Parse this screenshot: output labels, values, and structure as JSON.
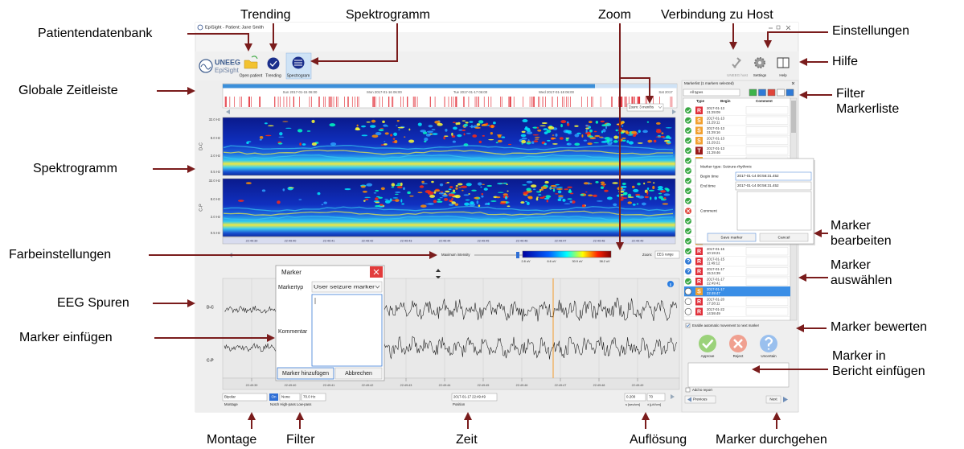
{
  "annotations": [
    "Patientendatenbank",
    "Trending",
    "Spektrogramm",
    "Zoom",
    "Verbindung zu Host",
    "Einstellungen",
    "Hilfe",
    "Globale Zeitleiste",
    "Filter Markerliste",
    "Spektrogramm",
    "Farbeinstellungen",
    "Marker bearbeiten",
    "Marker auswählen",
    "EEG Spuren",
    "Marker einfügen",
    "Marker bewerten",
    "Marker in Bericht einfügen",
    "Montage",
    "Filter",
    "Zeit",
    "Auflösung",
    "Marker durchgehen"
  ],
  "window": {
    "title": "EpiSight - Patient: Jane Smith"
  },
  "toolbar": {
    "brand": "UNEEG",
    "product": "EpiSight",
    "buttons": [
      "Open patient",
      "Trending",
      "Spectrogram"
    ],
    "right_buttons": [
      "UNEEG host",
      "Settings",
      "Help"
    ]
  },
  "timeline": {
    "dates": [
      "Sun 2017-01-15 06:00",
      "Mon 2017-01-16 06:00",
      "Tue 2017-01-17 06:00",
      "Wed 2017-01-18 06:00",
      "Sat 2017"
    ],
    "zoom": "Zoom: 3 months"
  },
  "spectrogram": {
    "channels": [
      "D-C",
      "C-P"
    ],
    "freq_ticks": [
      "32.0 Hz",
      "8.0 Hz",
      "2.0 Hz",
      "0.5 Hz"
    ],
    "time_ticks": [
      "22:49:39",
      "22:49:40",
      "22:49:41",
      "22:49:42",
      "22:49:43",
      "22:49:44",
      "22:49:45",
      "22:49:46",
      "22:49:47",
      "22:49:48",
      "22:49:49"
    ],
    "intensity_label": "Maximum intensity",
    "scale_labels": [
      "2.8 uV",
      "6.6 uV",
      "30.9 uV",
      "38.2 uV"
    ],
    "zoom_label": "Zoom:",
    "zoom_value": "EEG range"
  },
  "eeg": {
    "channels": [
      "D-C",
      "C-P"
    ],
    "time_ticks": [
      "22:49:39",
      "22:49:40",
      "22:49:41",
      "22:49:42",
      "22:49:43",
      "22:49:44",
      "22:49:45",
      "22:49:46",
      "22:49:47",
      "22:49:48",
      "22:49:49"
    ]
  },
  "insert_dialog": {
    "title": "Marker",
    "type_label": "Markertyp",
    "type_value": "User seizure marker",
    "comment_label": "Kommentar",
    "add": "Marker hinzufügen",
    "cancel": "Abbrechen"
  },
  "controls": {
    "montage": "Bipolar",
    "montage_label": "Montage",
    "filter_on": "On",
    "notch": "None",
    "lowpass": "70.0 Hz",
    "filter_label": "Notch High-pass Low-pass",
    "position": "2017-01-17 22:49:49",
    "position_label": "Position",
    "time_scale": "0.200",
    "amplitude_scale": "70",
    "time_scale_label": "s [sec/cm]",
    "amplitude_scale_label": "± [µV/cm]"
  },
  "marker_list": {
    "title": "Markerlist (1 markers selected)",
    "filter": "All types",
    "columns": [
      "Type",
      "Begin",
      "Comment"
    ],
    "rows": [
      {
        "status": "approved",
        "type": "R",
        "date": "2017-01-13",
        "time": "21:29:09"
      },
      {
        "status": "approved",
        "type": "S",
        "date": "2017-01-13",
        "time": "21:29:11"
      },
      {
        "status": "approved",
        "type": "S",
        "date": "2017-01-13",
        "time": "21:29:16"
      },
      {
        "status": "approved",
        "type": "S",
        "date": "2017-01-13",
        "time": "21:29:21"
      },
      {
        "status": "approved",
        "type": "T",
        "date": "2017-01-13",
        "time": "21:29:46"
      },
      {
        "status": "approved",
        "type": "S",
        "date": null,
        "time": null
      },
      {
        "status": "approved",
        "type": "S",
        "date": null,
        "time": null
      },
      {
        "status": "approved",
        "type": "S",
        "date": null,
        "time": null
      },
      {
        "status": "approved",
        "type": "T",
        "date": null,
        "time": null
      },
      {
        "status": "approved",
        "type": "S",
        "date": null,
        "time": null
      },
      {
        "status": "rejected",
        "type": "R",
        "date": null,
        "time": null
      },
      {
        "status": "approved",
        "type": "R",
        "date": null,
        "time": null
      },
      {
        "status": "approved",
        "type": "R",
        "date": null,
        "time": null
      },
      {
        "status": "approved",
        "type": "S",
        "date": null,
        "time": null
      },
      {
        "status": "approved",
        "type": "R",
        "date": "2017-01-15",
        "time": "10:19:21"
      },
      {
        "status": "uncertain",
        "type": "R",
        "date": "2017-01-15",
        "time": "11:49:12"
      },
      {
        "status": "uncertain",
        "type": "R",
        "date": "2017-01-17",
        "time": "15:24:39"
      },
      {
        "status": "approved",
        "type": "R",
        "date": "2017-01-17",
        "time": "22:49:41"
      },
      {
        "status": "none",
        "type": "S",
        "date": "2017-01-17",
        "time": "22:49:47",
        "selected": true
      },
      {
        "status": "none",
        "type": "R",
        "date": "2017-01-20",
        "time": "17:28:11"
      },
      {
        "status": "none",
        "type": "R",
        "date": "2017-01-22",
        "time": "14:59:49"
      }
    ],
    "auto_move": "Enable automatic movement to next marker",
    "actions": [
      "Approve",
      "Reject",
      "Uncertain"
    ],
    "add_to_report": "Add to report",
    "previous": "Previous",
    "next": "Next"
  },
  "edit_popup": {
    "title": "Marker type: Seizure-rhythmic",
    "begin_label": "Begin time",
    "begin": "2017-01-14 00:56:31.452",
    "end_label": "End time",
    "end": "2017-01-14 00:56:31.452",
    "comment_label": "Comment",
    "save": "Save marker",
    "cancel": "Cancel"
  }
}
